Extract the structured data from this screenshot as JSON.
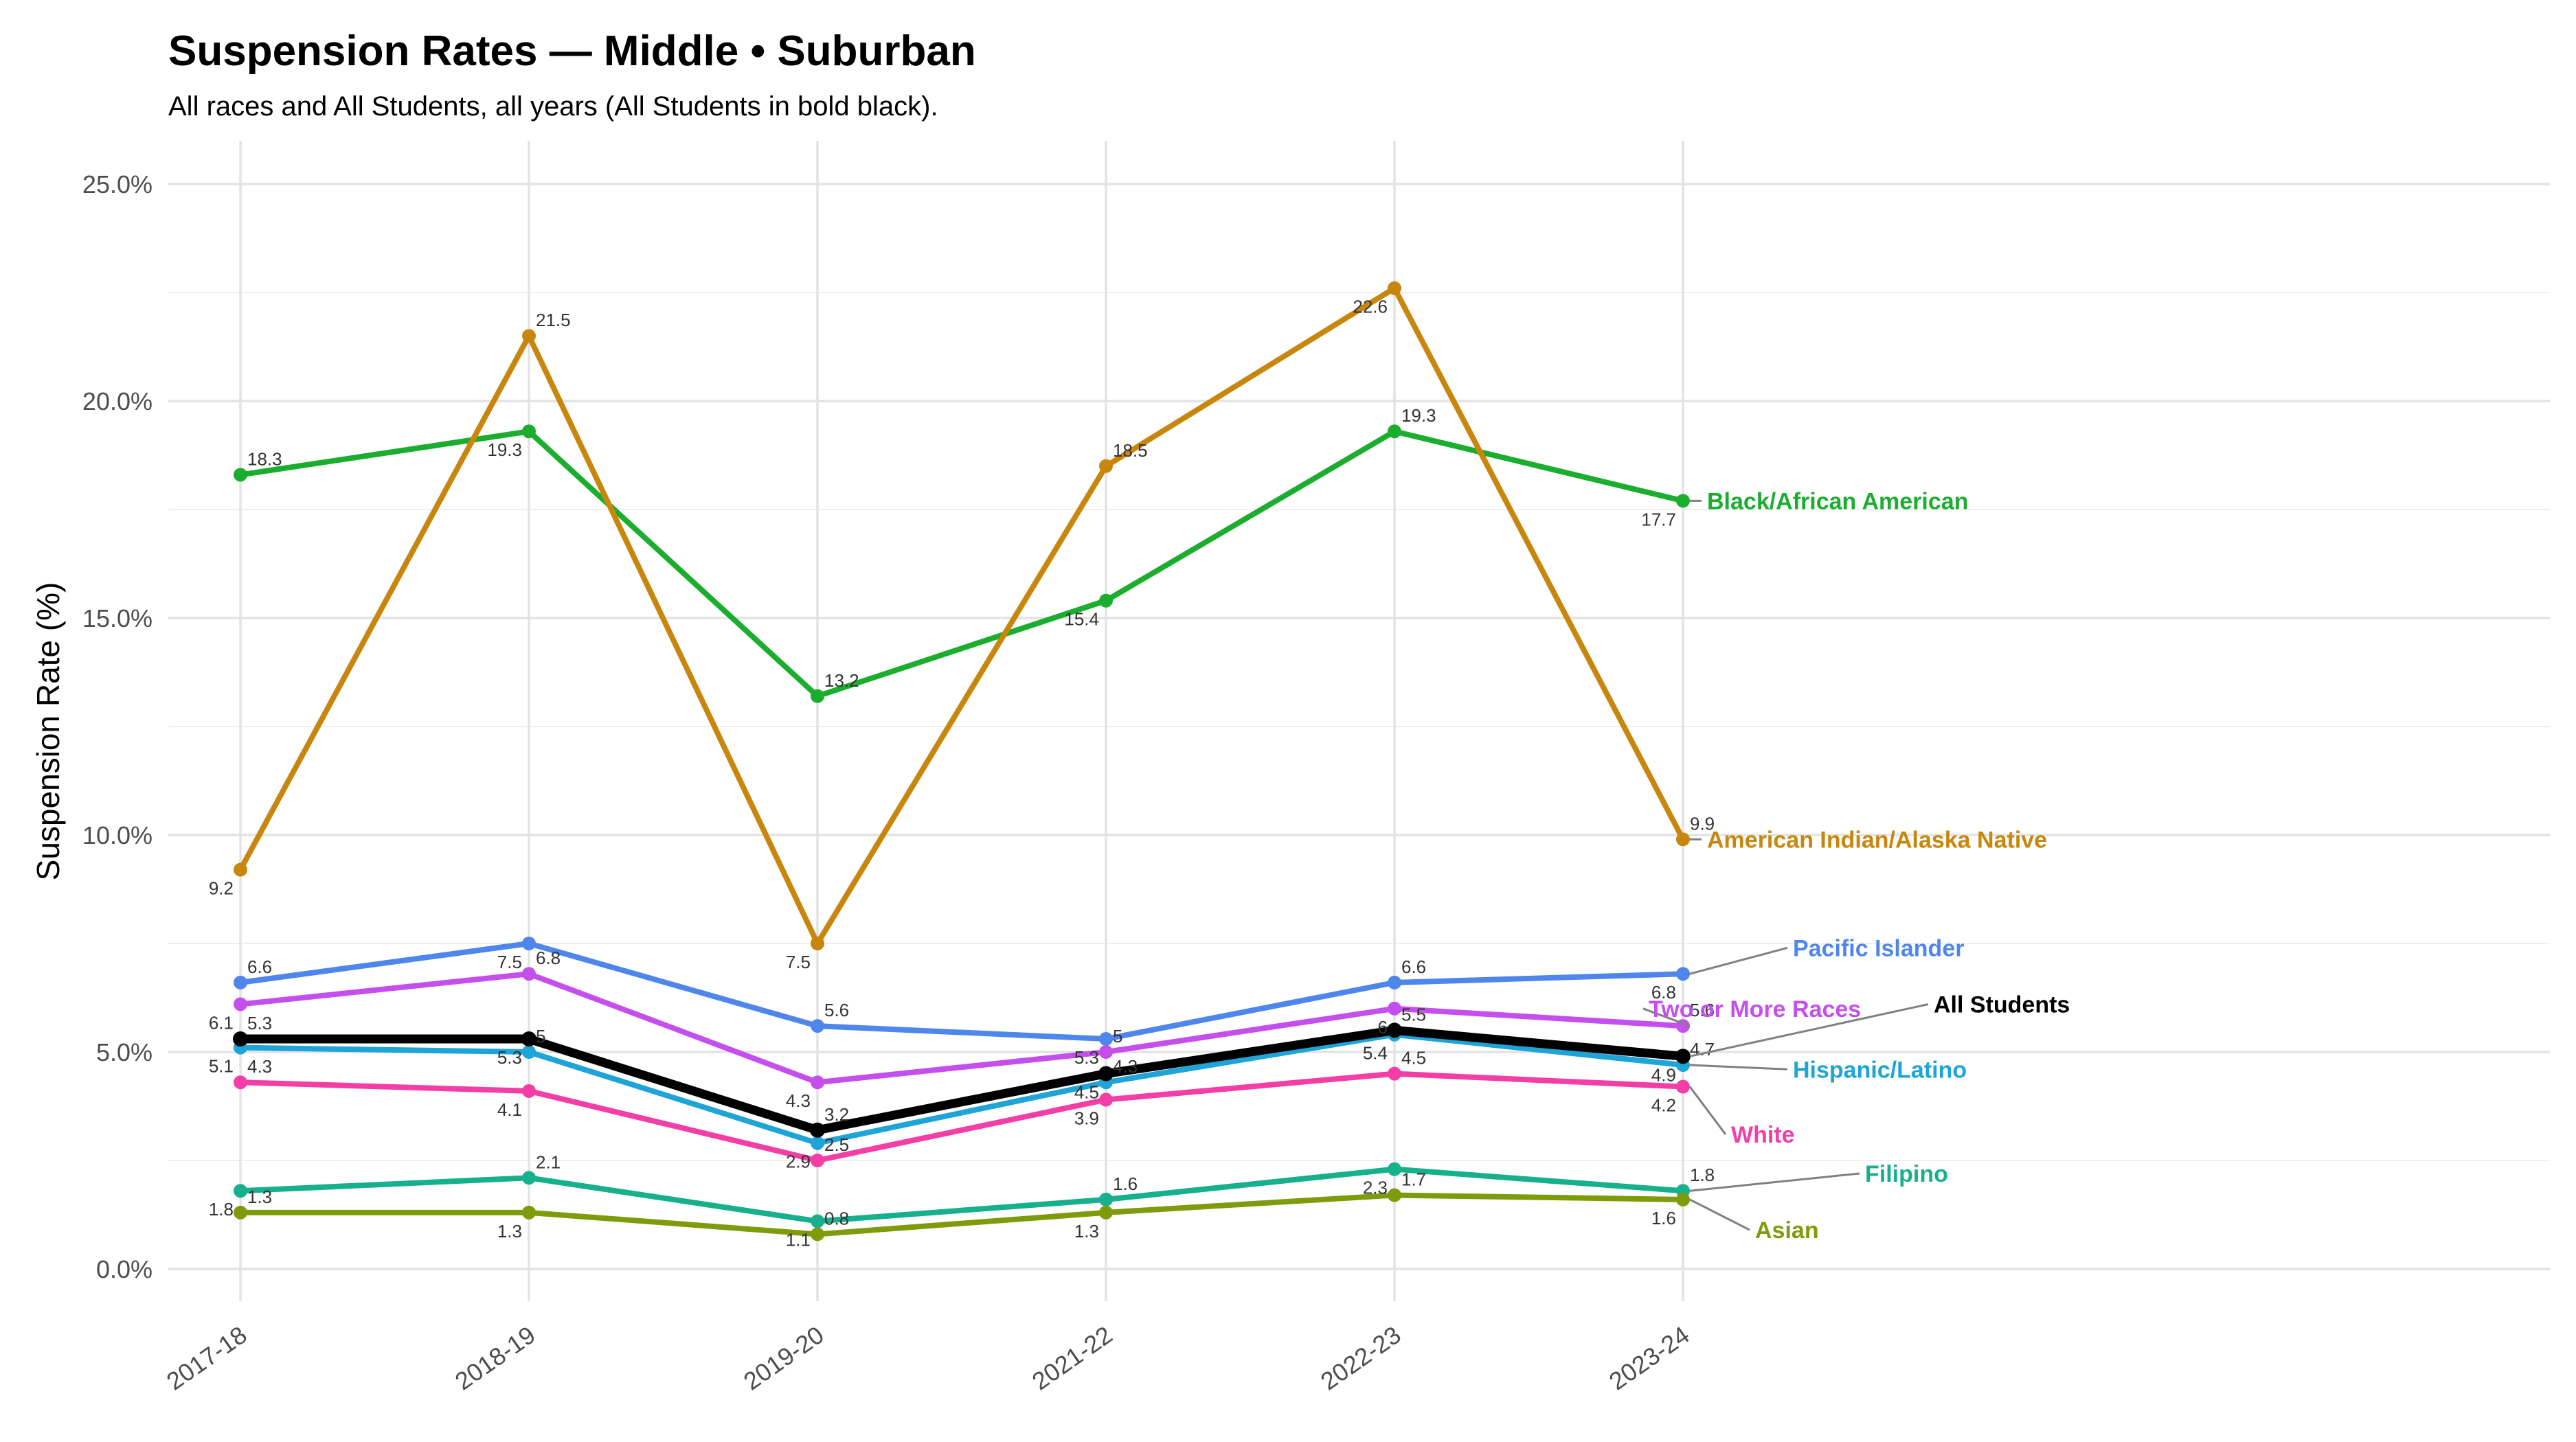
{
  "chart_data": {
    "type": "line",
    "title": "Suspension Rates — Middle • Suburban",
    "subtitle": "All races and All Students, all years (All Students in bold black).",
    "ylabel": "Suspension Rate (%)",
    "xlabel": "",
    "categories": [
      "2017-18",
      "2018-19",
      "2019-20",
      "2021-22",
      "2022-23",
      "2023-24"
    ],
    "ylim": [
      -1,
      26
    ],
    "y_ticks": [
      0,
      5,
      10,
      15,
      20,
      25
    ],
    "y_tick_labels": [
      "0.0%",
      "5.0%",
      "10.0%",
      "15.0%",
      "20.0%",
      "25.0%"
    ],
    "grid": true,
    "legend": "direct labels at line ends",
    "series": [
      {
        "name": "Black/African American",
        "color": "#1aad2e",
        "values": [
          18.3,
          19.3,
          13.2,
          15.4,
          19.3,
          17.7
        ],
        "point_labels": [
          "18.3",
          "19.3",
          "13.2",
          "15.4",
          "19.3",
          "17.7"
        ]
      },
      {
        "name": "American Indian/Alaska Native",
        "color": "#c8860d",
        "values": [
          9.2,
          21.5,
          7.5,
          18.5,
          22.6,
          9.9
        ],
        "point_labels": [
          "9.2",
          "21.5",
          "7.5",
          "18.5",
          "22.6",
          "9.9"
        ]
      },
      {
        "name": "Pacific Islander",
        "color": "#4f86ec",
        "values": [
          6.6,
          7.5,
          5.6,
          5.3,
          6.6,
          6.8
        ],
        "point_labels": [
          "6.6",
          "7.5",
          "5.6",
          "5.3",
          "6.6",
          "6.8"
        ]
      },
      {
        "name": "Two or More Races",
        "color": "#c54fed",
        "values": [
          6.1,
          6.8,
          4.3,
          5.0,
          6.0,
          5.6
        ],
        "point_labels": [
          "6.1",
          "6.8",
          "4.3",
          "5",
          "6",
          "5.6"
        ]
      },
      {
        "name": "All Students",
        "color": "#000000",
        "bold": true,
        "values": [
          5.3,
          5.3,
          3.2,
          4.5,
          5.5,
          4.9
        ],
        "point_labels": [
          "5.3",
          "5.3",
          "3.2",
          "4.5",
          "5.5",
          "4.9"
        ]
      },
      {
        "name": "Hispanic/Latino",
        "color": "#1ea4d6",
        "values": [
          5.1,
          5.0,
          2.9,
          4.3,
          5.4,
          4.7
        ],
        "point_labels": [
          "5.1",
          "5",
          "2.9",
          "4.3",
          "5.4",
          "4.7"
        ]
      },
      {
        "name": "White",
        "color": "#f23ea6",
        "values": [
          4.3,
          4.1,
          2.5,
          3.9,
          4.5,
          4.2
        ],
        "point_labels": [
          "4.3",
          "4.1",
          "2.5",
          "3.9",
          "4.5",
          "4.2"
        ]
      },
      {
        "name": "Filipino",
        "color": "#17b08c",
        "values": [
          1.8,
          2.1,
          1.1,
          1.6,
          2.3,
          1.8
        ],
        "point_labels": [
          "1.8",
          "2.1",
          "1.1",
          "1.6",
          "2.3",
          "1.8"
        ]
      },
      {
        "name": "Asian",
        "color": "#7f9b0c",
        "values": [
          1.3,
          1.3,
          0.8,
          1.3,
          1.7,
          1.6
        ],
        "point_labels": [
          "1.3",
          "1.3",
          "0.8",
          "1.3",
          "1.7",
          "1.6"
        ]
      }
    ]
  }
}
